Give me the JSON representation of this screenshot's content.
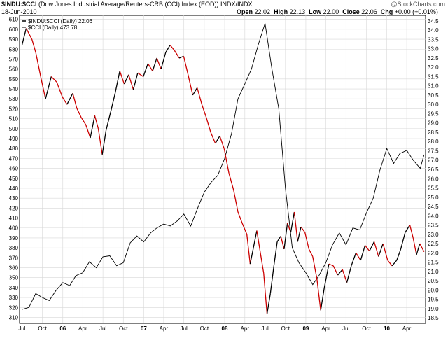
{
  "header": {
    "symbol": "$INDU:$CCI",
    "description": "(Dow Jones Industrial Average/Reuters-CRB (CCI) Index (EOD))",
    "exchange": "INDX/INDX",
    "date": "18-Jun-2010",
    "stats": {
      "open_label": "Open",
      "open": "22.02",
      "high_label": "High",
      "high": "22.13",
      "low_label": "Low",
      "low": "22.00",
      "close_label": "Close",
      "close": "22.06",
      "chg_label": "Chg",
      "chg": "+0.00 (+0.01%)"
    },
    "watermark": "@StockCharts.com"
  },
  "legend": [
    {
      "text": "$INDU:$CCI (Daily) 22.06"
    },
    {
      "text": "$CCI (Daily) 473.78"
    }
  ],
  "chart_data": {
    "type": "line",
    "x_tick_labels": [
      "Jul",
      "Oct",
      "06",
      "Apr",
      "Jul",
      "Oct",
      "07",
      "Apr",
      "Jul",
      "Oct",
      "08",
      "Apr",
      "Jul",
      "Oct",
      "09",
      "Apr",
      "Jul",
      "Oct",
      "10",
      "Apr"
    ],
    "left_axis": {
      "ticks": [
        310,
        320,
        330,
        340,
        350,
        360,
        370,
        380,
        390,
        400,
        410,
        420,
        430,
        440,
        450,
        460,
        470,
        480,
        490,
        500,
        510,
        520,
        530,
        540,
        550,
        560,
        570,
        580,
        590,
        600,
        610
      ],
      "ylim": [
        304,
        614
      ]
    },
    "right_axis": {
      "ticks": [
        18.5,
        19.0,
        19.5,
        20.0,
        20.5,
        21.0,
        21.5,
        22.0,
        22.5,
        23.0,
        23.5,
        24.0,
        24.5,
        25.0,
        25.5,
        26.0,
        26.5,
        27.0,
        27.5,
        28.0,
        28.5,
        29.0,
        29.5,
        30.0,
        30.5,
        31.0,
        31.5,
        32.0,
        32.5,
        33.0,
        33.5,
        34.0,
        34.5
      ],
      "ylim": [
        18.2,
        34.8
      ]
    },
    "grid": true,
    "series": [
      {
        "name": "$INDU:$CCI (Daily) 22.06",
        "axis": "right",
        "color": "#000000",
        "color_down": "#cc0000",
        "points": [
          [
            "2005-07-01",
            33.2
          ],
          [
            "2005-07-20",
            34.1
          ],
          [
            "2005-08-15",
            33.5
          ],
          [
            "2005-09-01",
            32.8
          ],
          [
            "2005-09-25",
            31.4
          ],
          [
            "2005-10-15",
            30.3
          ],
          [
            "2005-11-10",
            31.5
          ],
          [
            "2005-12-05",
            31.2
          ],
          [
            "2005-12-30",
            30.4
          ],
          [
            "2006-01-20",
            30.0
          ],
          [
            "2006-02-15",
            30.6
          ],
          [
            "2006-03-05",
            29.8
          ],
          [
            "2006-03-25",
            29.3
          ],
          [
            "2006-04-15",
            28.9
          ],
          [
            "2006-05-05",
            28.2
          ],
          [
            "2006-05-25",
            29.4
          ],
          [
            "2006-06-10",
            28.7
          ],
          [
            "2006-06-28",
            27.3
          ],
          [
            "2006-07-15",
            28.6
          ],
          [
            "2006-08-05",
            29.6
          ],
          [
            "2006-08-25",
            30.6
          ],
          [
            "2006-09-15",
            31.8
          ],
          [
            "2006-10-05",
            31.1
          ],
          [
            "2006-10-25",
            31.6
          ],
          [
            "2006-11-15",
            30.8
          ],
          [
            "2006-12-05",
            31.7
          ],
          [
            "2006-12-30",
            31.5
          ],
          [
            "2007-01-20",
            32.2
          ],
          [
            "2007-02-10",
            31.8
          ],
          [
            "2007-03-01",
            32.5
          ],
          [
            "2007-03-20",
            31.9
          ],
          [
            "2007-04-10",
            32.8
          ],
          [
            "2007-04-30",
            33.2
          ],
          [
            "2007-05-20",
            32.9
          ],
          [
            "2007-06-10",
            32.5
          ],
          [
            "2007-06-30",
            32.6
          ],
          [
            "2007-07-20",
            31.6
          ],
          [
            "2007-08-10",
            30.5
          ],
          [
            "2007-08-30",
            30.9
          ],
          [
            "2007-09-20",
            30.0
          ],
          [
            "2007-10-10",
            29.3
          ],
          [
            "2007-10-30",
            28.5
          ],
          [
            "2007-11-20",
            27.9
          ],
          [
            "2007-12-10",
            28.3
          ],
          [
            "2007-12-30",
            27.6
          ],
          [
            "2008-01-20",
            26.3
          ],
          [
            "2008-02-10",
            25.4
          ],
          [
            "2008-03-01",
            24.2
          ],
          [
            "2008-03-20",
            23.6
          ],
          [
            "2008-04-10",
            23.0
          ],
          [
            "2008-04-25",
            21.4
          ],
          [
            "2008-05-10",
            22.3
          ],
          [
            "2008-05-25",
            23.2
          ],
          [
            "2008-06-10",
            22.0
          ],
          [
            "2008-06-25",
            20.9
          ],
          [
            "2008-07-10",
            18.7
          ],
          [
            "2008-07-25",
            19.8
          ],
          [
            "2008-08-10",
            21.3
          ],
          [
            "2008-08-25",
            22.6
          ],
          [
            "2008-09-10",
            22.9
          ],
          [
            "2008-09-25",
            22.2
          ],
          [
            "2008-10-10",
            23.6
          ],
          [
            "2008-10-25",
            23.1
          ],
          [
            "2008-11-10",
            24.2
          ],
          [
            "2008-11-25",
            22.6
          ],
          [
            "2008-12-10",
            23.4
          ],
          [
            "2008-12-28",
            23.1
          ],
          [
            "2009-01-15",
            22.2
          ],
          [
            "2009-02-01",
            21.8
          ],
          [
            "2009-02-20",
            20.6
          ],
          [
            "2009-03-09",
            18.9
          ],
          [
            "2009-03-25",
            20.1
          ],
          [
            "2009-04-15",
            21.4
          ],
          [
            "2009-05-05",
            21.3
          ],
          [
            "2009-05-25",
            20.8
          ],
          [
            "2009-06-15",
            21.1
          ],
          [
            "2009-07-05",
            20.4
          ],
          [
            "2009-07-25",
            21.3
          ],
          [
            "2009-08-15",
            22.0
          ],
          [
            "2009-09-05",
            21.6
          ],
          [
            "2009-09-25",
            22.4
          ],
          [
            "2009-10-15",
            22.1
          ],
          [
            "2009-11-05",
            22.6
          ],
          [
            "2009-11-25",
            21.8
          ],
          [
            "2009-12-15",
            22.5
          ],
          [
            "2010-01-05",
            21.6
          ],
          [
            "2010-01-25",
            21.3
          ],
          [
            "2010-02-15",
            21.6
          ],
          [
            "2010-03-05",
            22.2
          ],
          [
            "2010-03-25",
            23.1
          ],
          [
            "2010-04-15",
            23.5
          ],
          [
            "2010-04-30",
            22.8
          ],
          [
            "2010-05-15",
            21.9
          ],
          [
            "2010-05-30",
            22.5
          ],
          [
            "2010-06-18",
            22.06
          ]
        ]
      },
      {
        "name": "$CCI (Daily) 473.78",
        "axis": "left",
        "color": "#000000",
        "points": [
          [
            "2005-07-01",
            318
          ],
          [
            "2005-08-01",
            320
          ],
          [
            "2005-09-01",
            334
          ],
          [
            "2005-10-01",
            330
          ],
          [
            "2005-11-01",
            327
          ],
          [
            "2005-12-01",
            337
          ],
          [
            "2006-01-01",
            345
          ],
          [
            "2006-02-01",
            342
          ],
          [
            "2006-03-01",
            352
          ],
          [
            "2006-04-01",
            355
          ],
          [
            "2006-05-01",
            366
          ],
          [
            "2006-06-01",
            360
          ],
          [
            "2006-07-01",
            371
          ],
          [
            "2006-08-01",
            372
          ],
          [
            "2006-09-01",
            362
          ],
          [
            "2006-10-01",
            365
          ],
          [
            "2006-11-01",
            385
          ],
          [
            "2006-12-01",
            392
          ],
          [
            "2007-01-01",
            386
          ],
          [
            "2007-02-01",
            395
          ],
          [
            "2007-03-01",
            400
          ],
          [
            "2007-04-01",
            404
          ],
          [
            "2007-05-01",
            402
          ],
          [
            "2007-06-01",
            407
          ],
          [
            "2007-07-01",
            414
          ],
          [
            "2007-08-01",
            402
          ],
          [
            "2007-09-01",
            420
          ],
          [
            "2007-10-01",
            436
          ],
          [
            "2007-11-01",
            446
          ],
          [
            "2007-12-01",
            453
          ],
          [
            "2008-01-01",
            470
          ],
          [
            "2008-02-01",
            495
          ],
          [
            "2008-03-01",
            530
          ],
          [
            "2008-04-01",
            545
          ],
          [
            "2008-05-01",
            560
          ],
          [
            "2008-06-01",
            585
          ],
          [
            "2008-07-01",
            606
          ],
          [
            "2008-08-01",
            560
          ],
          [
            "2008-09-01",
            520
          ],
          [
            "2008-10-01",
            440
          ],
          [
            "2008-11-01",
            380
          ],
          [
            "2008-12-01",
            365
          ],
          [
            "2009-01-01",
            355
          ],
          [
            "2009-02-01",
            343
          ],
          [
            "2009-03-01",
            352
          ],
          [
            "2009-04-01",
            365
          ],
          [
            "2009-05-01",
            383
          ],
          [
            "2009-06-01",
            395
          ],
          [
            "2009-07-01",
            383
          ],
          [
            "2009-08-01",
            400
          ],
          [
            "2009-09-01",
            398
          ],
          [
            "2009-10-01",
            415
          ],
          [
            "2009-11-01",
            430
          ],
          [
            "2009-12-01",
            458
          ],
          [
            "2010-01-01",
            480
          ],
          [
            "2010-02-01",
            465
          ],
          [
            "2010-03-01",
            475
          ],
          [
            "2010-04-01",
            478
          ],
          [
            "2010-05-01",
            468
          ],
          [
            "2010-06-01",
            460
          ],
          [
            "2010-06-18",
            473.78
          ]
        ]
      }
    ]
  }
}
